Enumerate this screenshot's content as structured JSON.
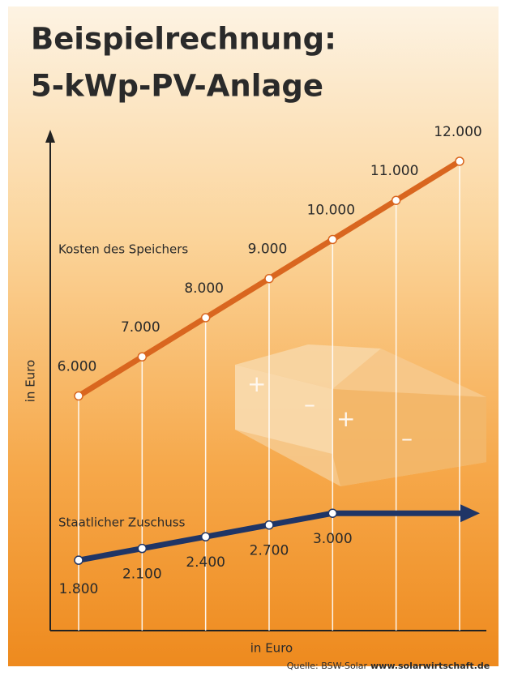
{
  "chart_data": {
    "type": "line",
    "title": "Beispielrechnung:",
    "subtitle": "5-kWp-PV-Anlage",
    "categories": [
      null,
      null,
      null,
      null,
      null,
      null,
      null
    ],
    "series": [
      {
        "name": "Kosten des Speichers",
        "color": "#d9661f",
        "values": [
          6000,
          7000,
          8000,
          9000,
          10000,
          11000,
          12000
        ],
        "value_labels": [
          "6.000",
          "7.000",
          "8.000",
          "9.000",
          "10.000",
          "11.000",
          "12.000"
        ]
      },
      {
        "name": "Staatlicher Zuschuss",
        "color": "#1f3566",
        "values": [
          1800,
          2100,
          2400,
          2700,
          3000,
          null,
          null
        ],
        "value_labels": [
          "1.800",
          "2.100",
          "2.400",
          "2.700",
          "3.000",
          null,
          null
        ]
      }
    ],
    "ylim": [
      0,
      12600
    ],
    "x_label": "in Euro",
    "y_label": "in Euro",
    "source": "Quelle: BSW-Solar",
    "source_url": "www.solarwirtschaft.de"
  }
}
